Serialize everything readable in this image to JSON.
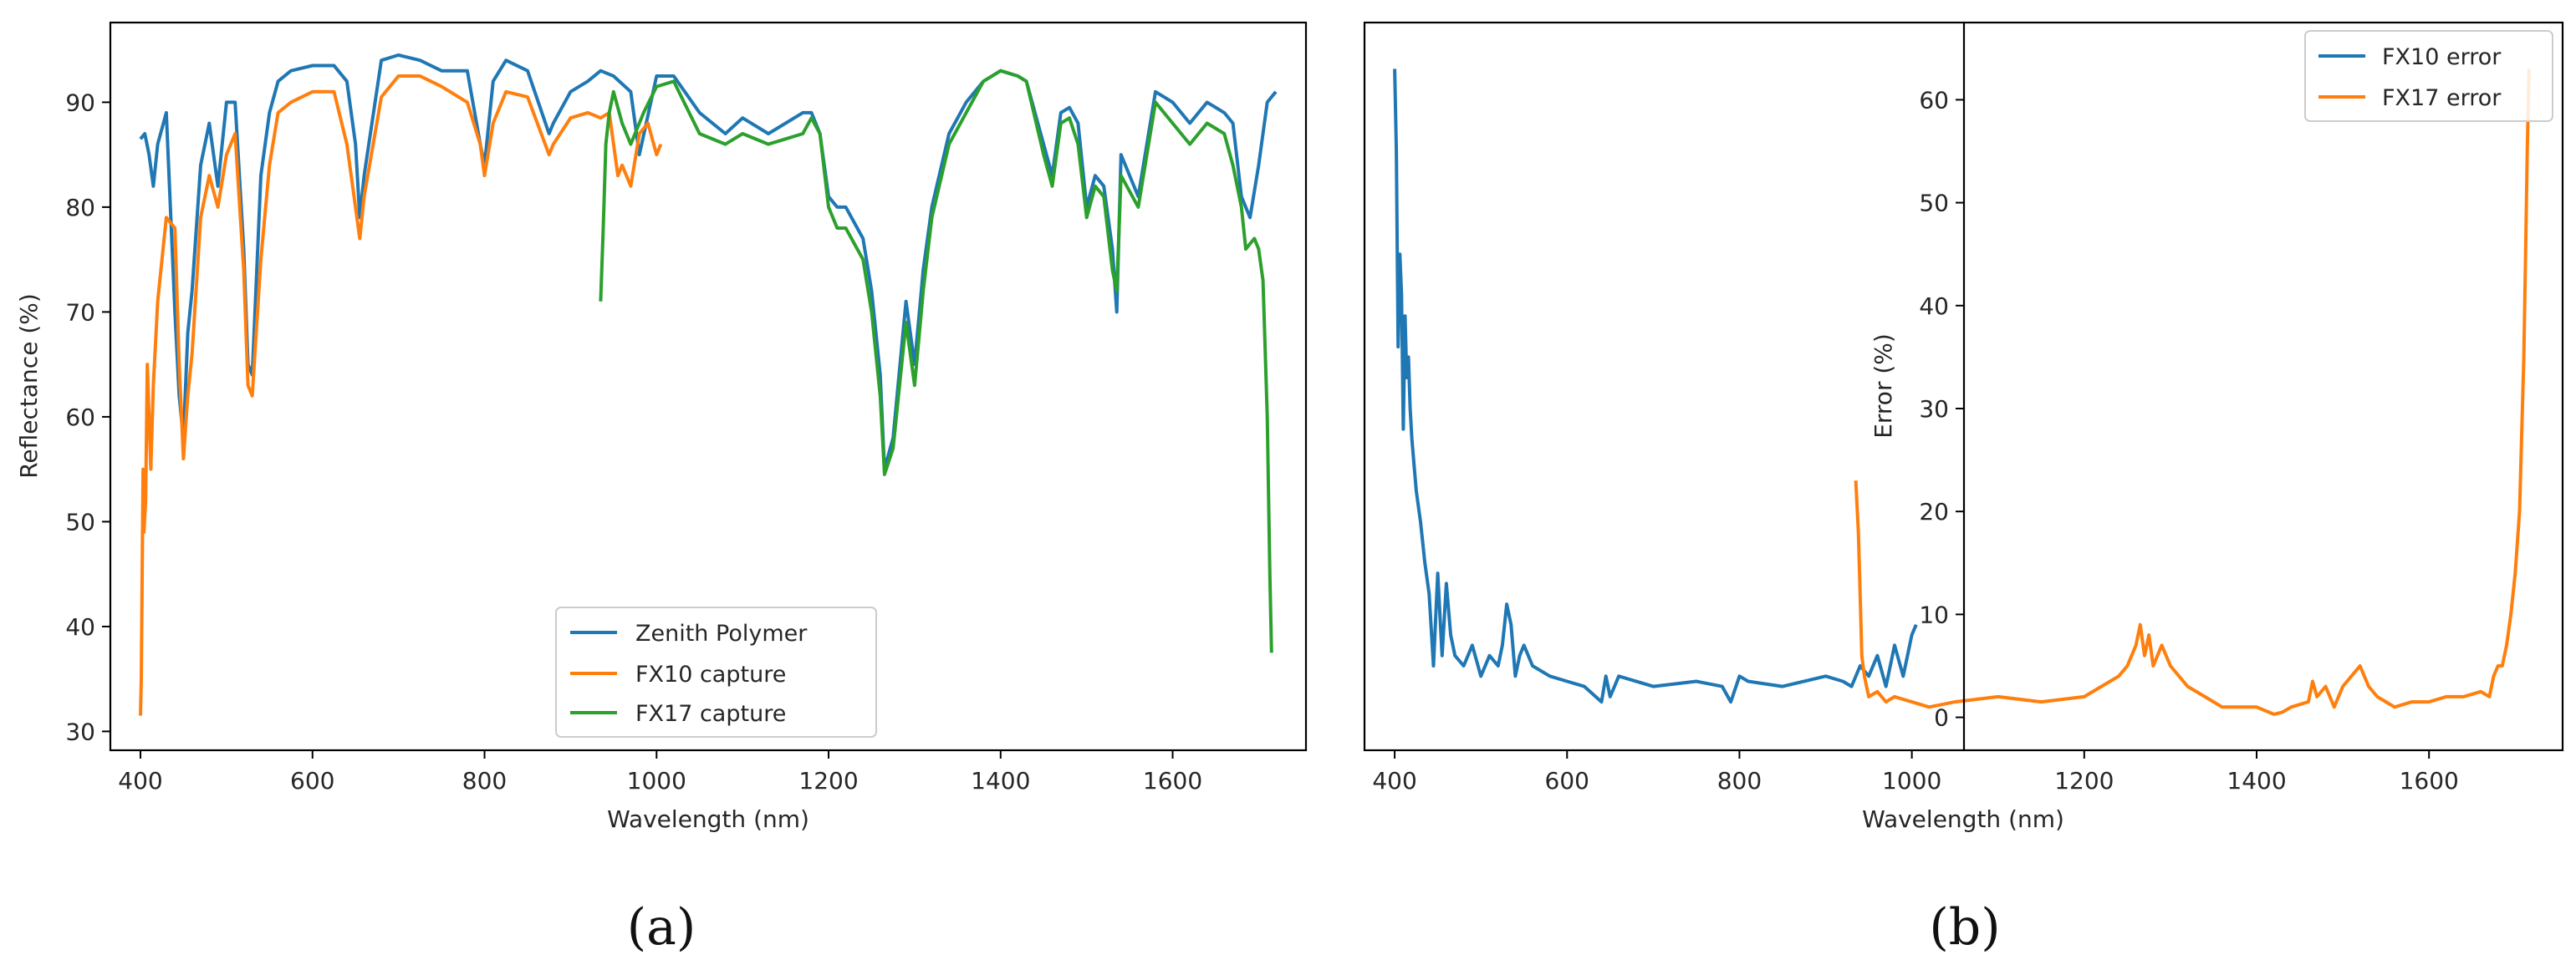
{
  "figure": {
    "captions": [
      "(a)",
      "(b)"
    ]
  },
  "colors": {
    "blue": "#1f77b4",
    "orange": "#ff7f0e",
    "green": "#2ca02c",
    "axis": "#000000"
  },
  "chart_data": [
    {
      "type": "line",
      "title": "",
      "caption": "(a)",
      "xlabel": "Wavelength (nm)",
      "ylabel": "Reflectance (%)",
      "xlim": [
        365,
        1755
      ],
      "ylim": [
        28.2,
        97.6
      ],
      "xticks": [
        400,
        600,
        800,
        1000,
        1200,
        1400,
        1600
      ],
      "yticks": [
        30,
        40,
        50,
        60,
        70,
        80,
        90
      ],
      "grid": false,
      "legend_position": "lower-center",
      "series": [
        {
          "name": "Zenith Polymer",
          "color": "#1f77b4",
          "x": [
            400,
            405,
            410,
            415,
            420,
            430,
            440,
            445,
            450,
            455,
            460,
            470,
            480,
            490,
            500,
            510,
            520,
            525,
            530,
            540,
            550,
            560,
            575,
            600,
            625,
            640,
            650,
            655,
            660,
            680,
            700,
            725,
            750,
            780,
            795,
            800,
            810,
            825,
            850,
            875,
            880,
            900,
            920,
            935,
            950,
            970,
            980,
            1000,
            1020,
            1050,
            1080,
            1100,
            1130,
            1150,
            1170,
            1180,
            1190,
            1200,
            1210,
            1220,
            1240,
            1250,
            1260,
            1265,
            1275,
            1290,
            1300,
            1310,
            1320,
            1340,
            1360,
            1380,
            1400,
            1420,
            1430,
            1450,
            1460,
            1470,
            1480,
            1490,
            1500,
            1510,
            1520,
            1530,
            1535,
            1540,
            1560,
            1580,
            1600,
            1620,
            1640,
            1660,
            1670,
            1680,
            1690,
            1700,
            1710,
            1720
          ],
          "y": [
            86.5,
            87,
            85,
            82,
            86,
            89,
            70,
            62,
            58,
            68,
            72,
            84,
            88,
            82,
            90,
            90,
            76,
            65,
            64,
            83,
            89,
            92,
            93,
            93.5,
            93.5,
            92,
            86,
            79,
            83,
            94,
            94.5,
            94,
            93,
            93,
            86,
            84,
            92,
            94,
            93,
            87,
            88,
            91,
            92,
            93,
            92.5,
            91,
            85,
            92.5,
            92.5,
            89,
            87,
            88.5,
            87,
            88,
            89,
            89,
            87,
            81,
            80,
            80,
            77,
            72,
            64,
            55,
            58,
            71,
            65,
            74,
            80,
            87,
            90,
            92,
            93,
            92.5,
            92,
            86,
            83,
            89,
            89.5,
            88,
            80,
            83,
            82,
            76,
            70,
            85,
            81,
            91,
            90,
            88,
            90,
            89,
            88,
            81,
            79,
            84,
            90,
            91
          ]
        },
        {
          "name": "FX10 capture",
          "color": "#ff7f0e",
          "x": [
            400,
            401,
            403,
            404,
            406,
            408,
            410,
            412,
            415,
            420,
            430,
            440,
            445,
            450,
            455,
            460,
            470,
            480,
            490,
            500,
            510,
            520,
            525,
            530,
            540,
            550,
            560,
            575,
            600,
            625,
            640,
            650,
            655,
            660,
            680,
            700,
            725,
            750,
            780,
            795,
            800,
            810,
            825,
            850,
            875,
            880,
            900,
            920,
            935,
            945,
            955,
            960,
            970,
            980,
            990,
            1000,
            1005
          ],
          "y": [
            31.5,
            35,
            55,
            49,
            52,
            65,
            60,
            55,
            63,
            71,
            79,
            78,
            65,
            56,
            62,
            66,
            79,
            83,
            80,
            85,
            87,
            74,
            63,
            62,
            75,
            84,
            89,
            90,
            91,
            91,
            86,
            80,
            77,
            81,
            90.5,
            92.5,
            92.5,
            91.5,
            90,
            86,
            83,
            88,
            91,
            90.5,
            85,
            86,
            88.5,
            89,
            88.5,
            89,
            83,
            84,
            82,
            87,
            88,
            85,
            86
          ]
        },
        {
          "name": "FX17 capture",
          "color": "#2ca02c",
          "x": [
            935,
            938,
            941,
            945,
            950,
            960,
            970,
            985,
            1000,
            1020,
            1050,
            1080,
            1100,
            1130,
            1150,
            1170,
            1180,
            1190,
            1200,
            1210,
            1220,
            1240,
            1250,
            1260,
            1265,
            1275,
            1290,
            1300,
            1310,
            1320,
            1340,
            1360,
            1380,
            1400,
            1420,
            1430,
            1450,
            1460,
            1470,
            1480,
            1490,
            1500,
            1510,
            1520,
            1530,
            1535,
            1540,
            1560,
            1580,
            1600,
            1620,
            1640,
            1660,
            1670,
            1680,
            1685,
            1690,
            1695,
            1700,
            1705,
            1710,
            1713,
            1715
          ],
          "y": [
            71,
            78,
            86,
            89,
            91,
            88,
            86,
            89,
            91.5,
            92,
            87,
            86,
            87,
            86,
            86.5,
            87,
            88.5,
            87,
            80,
            78,
            78,
            75,
            70,
            62,
            54.5,
            57,
            69,
            63,
            72,
            79,
            86,
            89,
            92,
            93,
            92.5,
            92,
            85,
            82,
            88,
            88.5,
            86,
            79,
            82,
            81,
            74,
            72,
            83,
            80,
            90,
            88,
            86,
            88,
            87,
            84,
            80,
            76,
            76.5,
            77,
            76,
            73,
            60,
            45,
            37.5
          ]
        }
      ]
    },
    {
      "type": "line",
      "title": "",
      "caption": "(b)",
      "xlabel": "Wavelength (nm)",
      "ylabel": "Error (%)",
      "xlim": [
        365,
        1755
      ],
      "ylim": [
        -3.2,
        67.5
      ],
      "xticks": [
        400,
        600,
        800,
        1000,
        1200,
        1400,
        1600
      ],
      "yticks": [
        0,
        10,
        20,
        30,
        40,
        50,
        60
      ],
      "grid": false,
      "legend_position": "top-right",
      "series": [
        {
          "name": "FX10 error",
          "color": "#1f77b4",
          "x": [
            400,
            402,
            404,
            406,
            408,
            410,
            412,
            414,
            416,
            418,
            420,
            425,
            430,
            435,
            440,
            445,
            450,
            455,
            460,
            465,
            470,
            480,
            490,
            500,
            510,
            520,
            525,
            530,
            535,
            540,
            545,
            550,
            560,
            580,
            600,
            620,
            640,
            645,
            650,
            655,
            660,
            700,
            750,
            780,
            790,
            800,
            810,
            850,
            900,
            920,
            930,
            940,
            950,
            960,
            970,
            980,
            990,
            1000,
            1005
          ],
          "y": [
            63,
            55,
            36,
            45,
            41,
            28,
            39,
            33,
            35,
            30,
            27,
            22,
            19,
            15,
            12,
            5,
            14,
            6,
            13,
            8,
            6,
            5,
            7,
            4,
            6,
            5,
            7,
            11,
            9,
            4,
            6,
            7,
            5,
            4,
            3.5,
            3,
            1.5,
            4,
            2,
            3,
            4,
            3,
            3.5,
            3,
            1.5,
            4,
            3.5,
            3,
            4,
            3.5,
            3,
            5,
            4,
            6,
            3,
            7,
            4,
            8,
            9
          ]
        },
        {
          "name": "FX17 error",
          "color": "#ff7f0e",
          "x": [
            935,
            938,
            940,
            942,
            945,
            950,
            960,
            970,
            980,
            1000,
            1020,
            1050,
            1100,
            1150,
            1200,
            1220,
            1240,
            1250,
            1260,
            1265,
            1270,
            1275,
            1280,
            1290,
            1300,
            1320,
            1340,
            1360,
            1380,
            1400,
            1420,
            1430,
            1440,
            1460,
            1465,
            1470,
            1480,
            1490,
            1500,
            1510,
            1520,
            1530,
            1540,
            1550,
            1560,
            1580,
            1600,
            1620,
            1640,
            1660,
            1670,
            1675,
            1680,
            1685,
            1690,
            1695,
            1700,
            1705,
            1710,
            1712,
            1714,
            1716
          ],
          "y": [
            23,
            18,
            12,
            6,
            4,
            2,
            2.5,
            1.5,
            2,
            1.5,
            1,
            1.5,
            2,
            1.5,
            2,
            3,
            4,
            5,
            7,
            9,
            6,
            8,
            5,
            7,
            5,
            3,
            2,
            1,
            1,
            1,
            0.3,
            0.5,
            1,
            1.5,
            3.5,
            2,
            3,
            1,
            3,
            4,
            5,
            3,
            2,
            1.5,
            1,
            1.5,
            1.5,
            2,
            2,
            2.5,
            2,
            4,
            5,
            5,
            7,
            10,
            14,
            20,
            35,
            45,
            55,
            63
          ]
        }
      ]
    }
  ]
}
